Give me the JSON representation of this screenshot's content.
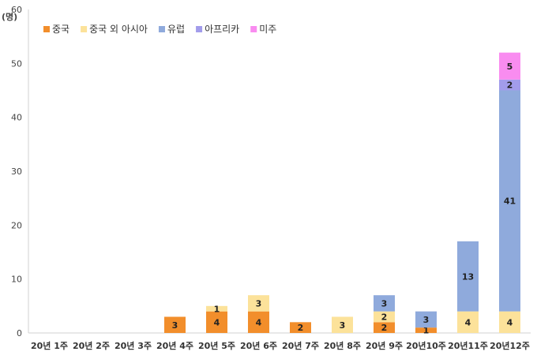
{
  "chart_data": {
    "type": "bar",
    "stacked": true,
    "title": "",
    "xlabel": "",
    "ylabel": "(명)",
    "ylim": [
      0,
      60
    ],
    "yticks": [
      0,
      10,
      20,
      30,
      40,
      50,
      60
    ],
    "grid": false,
    "legend_position": "top-left",
    "categories": [
      "20년 1주",
      "20년 2주",
      "20년 3주",
      "20년 4주",
      "20년 5주",
      "20년 6주",
      "20년 7주",
      "20년 8주",
      "20년 9주",
      "20년10주",
      "20년11주",
      "20년12주"
    ],
    "series": [
      {
        "name": "중국",
        "color": "#F28E2B",
        "values": [
          0,
          0,
          0,
          3,
          4,
          4,
          2,
          0,
          2,
          1,
          0,
          0
        ]
      },
      {
        "name": "중국 외 아시아",
        "color": "#FCE29A",
        "values": [
          0,
          0,
          0,
          0,
          1,
          3,
          0,
          3,
          2,
          0,
          4,
          4
        ]
      },
      {
        "name": "유럽",
        "color": "#8FAADC",
        "values": [
          0,
          0,
          0,
          0,
          0,
          0,
          0,
          0,
          3,
          3,
          13,
          41
        ]
      },
      {
        "name": "아프리카",
        "color": "#A29CEB",
        "values": [
          0,
          0,
          0,
          0,
          0,
          0,
          0,
          0,
          0,
          0,
          0,
          2
        ]
      },
      {
        "name": "미주",
        "color": "#F98CF0",
        "values": [
          0,
          0,
          0,
          0,
          0,
          0,
          0,
          0,
          0,
          0,
          0,
          5
        ]
      }
    ]
  }
}
